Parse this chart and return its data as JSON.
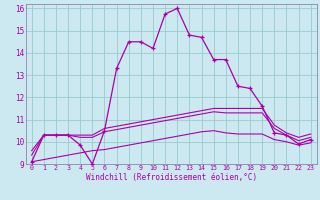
{
  "xlabel": "Windchill (Refroidissement éolien,°C)",
  "bg_color": "#cce8f0",
  "grid_color": "#99cccc",
  "line_color": "#aa00aa",
  "spine_color": "#8888aa",
  "xlim": [
    -0.5,
    23.5
  ],
  "ylim": [
    9,
    16.2
  ],
  "xticks": [
    0,
    1,
    2,
    3,
    4,
    5,
    6,
    7,
    8,
    9,
    10,
    11,
    12,
    13,
    14,
    15,
    16,
    17,
    18,
    19,
    20,
    21,
    22,
    23
  ],
  "yticks": [
    9,
    10,
    11,
    12,
    13,
    14,
    15,
    16
  ],
  "series_main": {
    "x": [
      0,
      1,
      2,
      3,
      4,
      5,
      6,
      7,
      8,
      9,
      10,
      11,
      12,
      13,
      14,
      15,
      16,
      17,
      18,
      19,
      20,
      21,
      22,
      23
    ],
    "y": [
      9.1,
      10.3,
      10.3,
      10.3,
      9.85,
      9.0,
      10.5,
      13.3,
      14.5,
      14.5,
      14.2,
      15.75,
      16.0,
      14.8,
      14.7,
      13.7,
      13.7,
      12.5,
      12.4,
      11.6,
      10.4,
      10.3,
      9.9,
      10.1
    ]
  },
  "series_upper": {
    "x": [
      0,
      1,
      2,
      3,
      4,
      5,
      6,
      7,
      8,
      9,
      10,
      11,
      12,
      13,
      14,
      15,
      16,
      17,
      18,
      19,
      20,
      21,
      22,
      23
    ],
    "y": [
      9.6,
      10.3,
      10.3,
      10.3,
      10.3,
      10.3,
      10.6,
      10.7,
      10.8,
      10.9,
      11.0,
      11.1,
      11.2,
      11.3,
      11.4,
      11.5,
      11.5,
      11.5,
      11.5,
      11.5,
      10.75,
      10.4,
      10.2,
      10.35
    ]
  },
  "series_middle": {
    "x": [
      0,
      1,
      2,
      3,
      4,
      5,
      6,
      7,
      8,
      9,
      10,
      11,
      12,
      13,
      14,
      15,
      16,
      17,
      18,
      19,
      20,
      21,
      22,
      23
    ],
    "y": [
      9.4,
      10.3,
      10.3,
      10.3,
      10.2,
      10.2,
      10.45,
      10.55,
      10.65,
      10.75,
      10.85,
      10.95,
      11.05,
      11.15,
      11.25,
      11.35,
      11.3,
      11.3,
      11.3,
      11.3,
      10.6,
      10.3,
      10.05,
      10.2
    ]
  },
  "series_lower": {
    "x": [
      0,
      1,
      2,
      3,
      4,
      5,
      6,
      7,
      8,
      9,
      10,
      11,
      12,
      13,
      14,
      15,
      16,
      17,
      18,
      19,
      20,
      21,
      22,
      23
    ],
    "y": [
      9.1,
      9.2,
      9.3,
      9.4,
      9.5,
      9.6,
      9.65,
      9.75,
      9.85,
      9.95,
      10.05,
      10.15,
      10.25,
      10.35,
      10.45,
      10.5,
      10.4,
      10.35,
      10.35,
      10.35,
      10.1,
      10.0,
      9.85,
      9.95
    ]
  }
}
